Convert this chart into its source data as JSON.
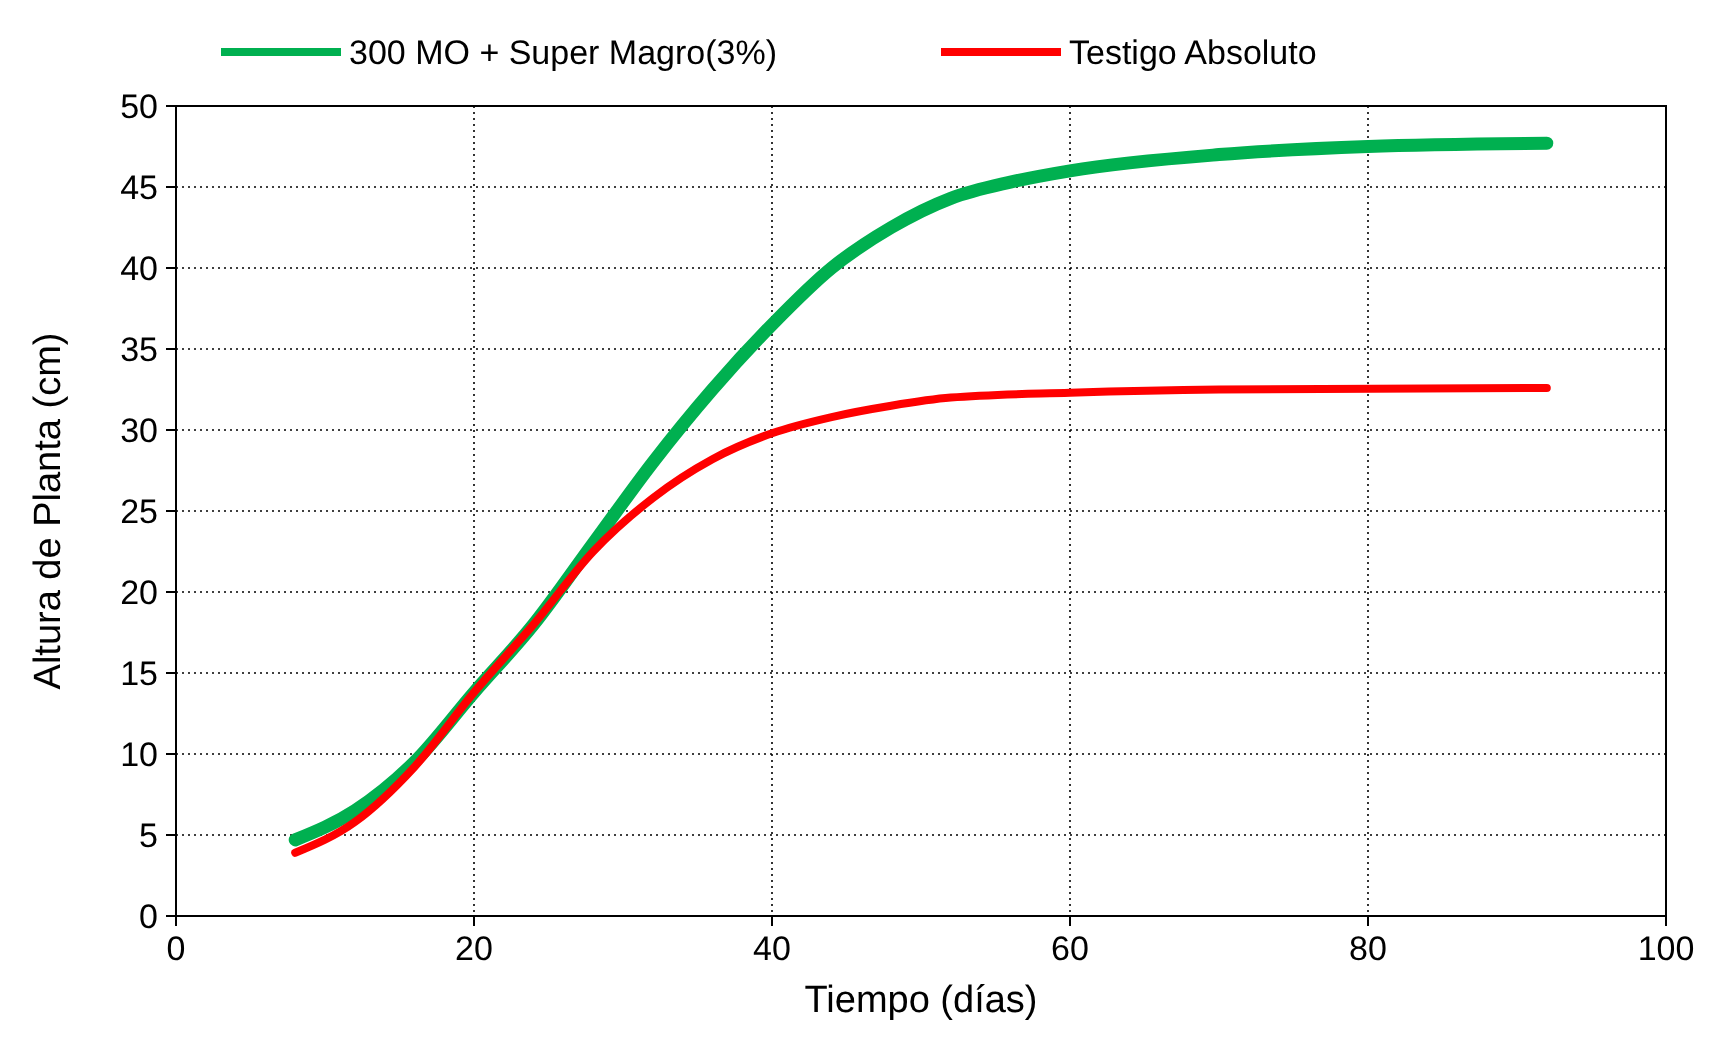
{
  "chart_data": {
    "type": "line",
    "xlabel": "Tiempo (días)",
    "ylabel": "Altura de Planta (cm)",
    "xlim": [
      0,
      100
    ],
    "xticks": [
      0,
      20,
      40,
      60,
      80,
      100
    ],
    "ylim": [
      0,
      50
    ],
    "yticks": [
      0,
      5,
      10,
      15,
      20,
      25,
      30,
      35,
      40,
      45,
      50
    ],
    "grid": true,
    "legend": "top",
    "marker": "none",
    "line_style": "solid",
    "series": [
      {
        "name": "300 MO + Super Magro(3%)",
        "color": "#00b050",
        "x": [
          8,
          12,
          16,
          20,
          24,
          28,
          32,
          36,
          40,
          44,
          48,
          52,
          56,
          60,
          70,
          80,
          92
        ],
        "values": [
          4.7,
          6.5,
          9.5,
          13.8,
          18,
          23,
          28,
          32.5,
          36.5,
          40,
          42.5,
          44.3,
          45.3,
          46,
          47,
          47.5,
          47.7
        ]
      },
      {
        "name": "Testigo Absoluto",
        "color": "#ff0000",
        "x": [
          8,
          12,
          16,
          20,
          24,
          28,
          32,
          36,
          40,
          44,
          48,
          52,
          60,
          70,
          92
        ],
        "values": [
          3.9,
          5.8,
          9.2,
          13.8,
          18,
          22.5,
          25.8,
          28.2,
          29.8,
          30.8,
          31.5,
          32,
          32.3,
          32.5,
          32.6
        ]
      }
    ]
  }
}
